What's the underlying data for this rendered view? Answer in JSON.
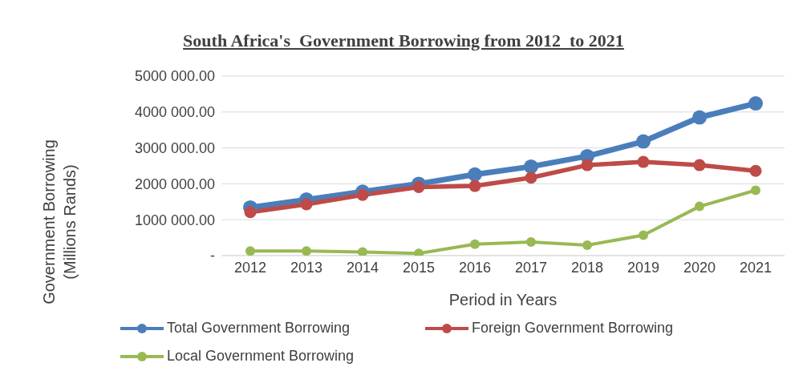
{
  "chart_data": {
    "type": "line",
    "title": "South Africa's  Government Borrowing from 2012  to 2021",
    "xlabel": "Period in Years",
    "ylabel": "Government Borrowing\n(Millions Rands)",
    "categories": [
      "2012",
      "2013",
      "2014",
      "2015",
      "2016",
      "2017",
      "2018",
      "2019",
      "2020",
      "2021"
    ],
    "series": [
      {
        "name": "Total Government Borrowing",
        "color": "#4a7ebb",
        "values": [
          1340000,
          1560000,
          1780000,
          2000000,
          2260000,
          2480000,
          2770000,
          3180000,
          3850000,
          4240000
        ]
      },
      {
        "name": "Foreign Government Borrowing",
        "color": "#be4b48",
        "values": [
          1210000,
          1430000,
          1690000,
          1910000,
          1940000,
          2170000,
          2520000,
          2610000,
          2520000,
          2360000
        ]
      },
      {
        "name": "Local Government Borrowing",
        "color": "#98b954",
        "values": [
          130000,
          130000,
          100000,
          60000,
          320000,
          380000,
          290000,
          570000,
          1370000,
          1820000
        ]
      }
    ],
    "ylim": [
      0,
      5000000
    ],
    "yticks": [
      {
        "value": 0,
        "label": "-"
      },
      {
        "value": 1000000,
        "label": "1000 000.00"
      },
      {
        "value": 2000000,
        "label": "2000 000.00"
      },
      {
        "value": 3000000,
        "label": "3000 000.00"
      },
      {
        "value": 4000000,
        "label": "4000 000.00"
      },
      {
        "value": 5000000,
        "label": "5000 000.00"
      }
    ],
    "grid": "y",
    "legend": "bottom",
    "marker": "circle",
    "line_style": "solid"
  }
}
